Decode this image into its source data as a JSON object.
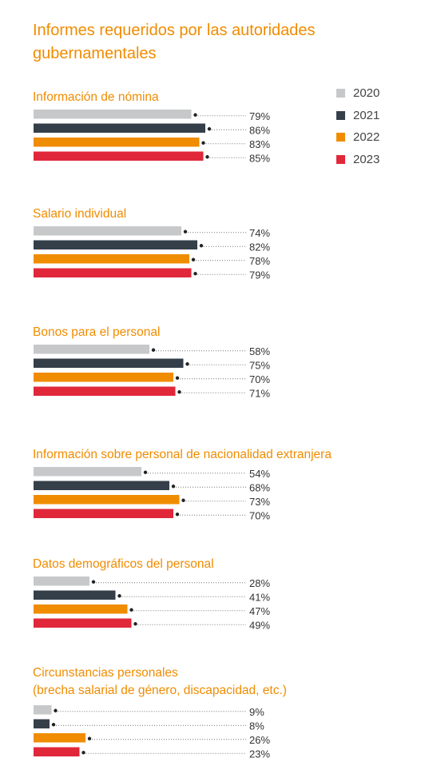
{
  "title": "Informes requeridos por las autoridades gubernamentales",
  "legend": [
    {
      "label": "2020",
      "color": "#c6c8ca"
    },
    {
      "label": "2021",
      "color": "#353f4a"
    },
    {
      "label": "2022",
      "color": "#f08c00"
    },
    {
      "label": "2023",
      "color": "#e0283a"
    }
  ],
  "chart_data": {
    "type": "bar",
    "orientation": "horizontal",
    "unit": "%",
    "series_names": [
      "2020",
      "2021",
      "2022",
      "2023"
    ],
    "groups": [
      {
        "title": [
          "Información de nómina"
        ],
        "values": [
          79,
          86,
          83,
          85
        ],
        "labels": [
          "79%",
          "86%",
          "83%",
          "85%"
        ]
      },
      {
        "title": [
          "Salario individual"
        ],
        "values": [
          74,
          82,
          78,
          79
        ],
        "labels": [
          "74%",
          "82%",
          "78%",
          "79%"
        ]
      },
      {
        "title": [
          "Bonos para el personal"
        ],
        "values": [
          58,
          75,
          70,
          71
        ],
        "labels": [
          "58%",
          "75%",
          "70%",
          "71%"
        ]
      },
      {
        "title": [
          "Información sobre personal de nacionalidad extranjera"
        ],
        "values": [
          54,
          68,
          73,
          70
        ],
        "labels": [
          "54%",
          "68%",
          "73%",
          "70%"
        ]
      },
      {
        "title": [
          "Datos demográficos del personal"
        ],
        "values": [
          28,
          41,
          47,
          49
        ],
        "labels": [
          "28%",
          "41%",
          "47%",
          "49%"
        ]
      },
      {
        "title": [
          "Circunstancias personales",
          "(brecha salarial de género, discapacidad, etc.)"
        ],
        "values": [
          9,
          8,
          26,
          23
        ],
        "labels": [
          "9%",
          "8%",
          "26%",
          "23%"
        ]
      }
    ]
  }
}
